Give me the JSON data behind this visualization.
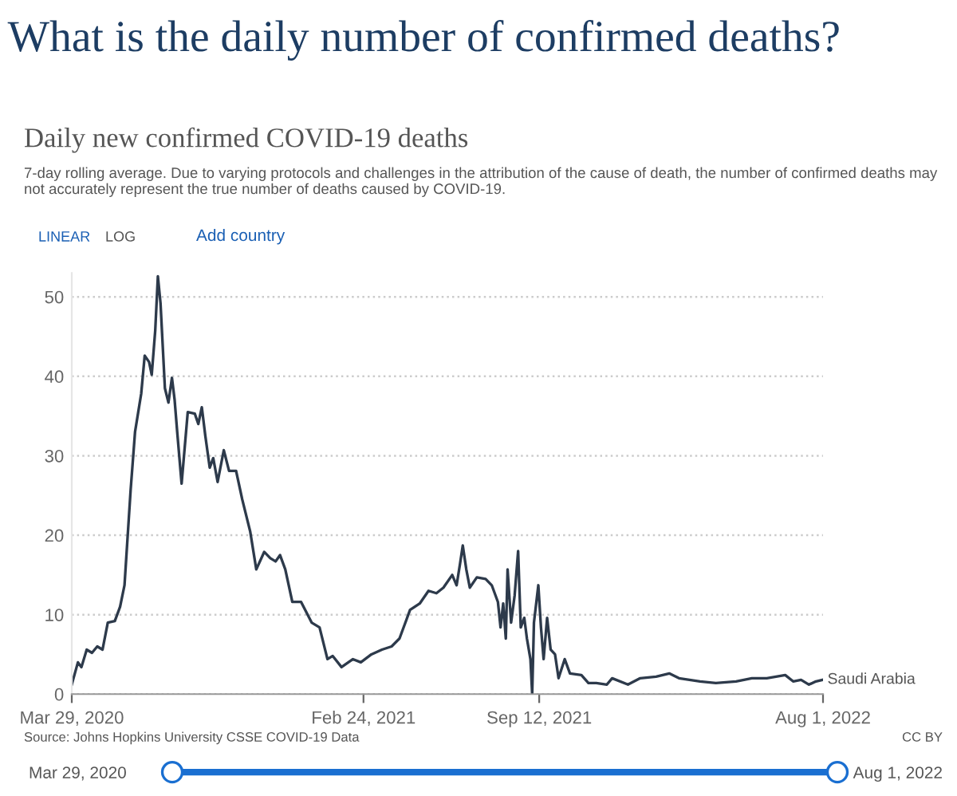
{
  "chart_data": {
    "type": "line",
    "title": "What is the daily number of confirmed deaths?",
    "subtitle": "Daily new confirmed COVID-19 deaths",
    "annotations": [
      "7-day rolling average. Due to varying protocols and challenges in the attribution of the cause of death, the number of confirmed deaths may not accurately represent the true number of deaths caused by COVID-19.",
      "LINEAR",
      "LOG",
      "Add country",
      "Source: Johns Hopkins University CSSE COVID-19 Data",
      "CC BY",
      "Mar 29, 2020",
      "Aug 1, 2022"
    ],
    "x": [
      "2020-03-29",
      "2020-04-05",
      "2020-04-09",
      "2020-04-15",
      "2020-04-21",
      "2020-04-27",
      "2020-05-03",
      "2020-05-09",
      "2020-05-17",
      "2020-05-23",
      "2020-05-28",
      "2020-06-04",
      "2020-06-09",
      "2020-06-16",
      "2020-06-20",
      "2020-06-25",
      "2020-06-28",
      "2020-07-02",
      "2020-07-05",
      "2020-07-08",
      "2020-07-13",
      "2020-07-17",
      "2020-07-21",
      "2020-07-24",
      "2020-07-27",
      "2020-08-01",
      "2020-08-08",
      "2020-08-16",
      "2020-08-20",
      "2020-08-24",
      "2020-08-28",
      "2020-09-02",
      "2020-09-06",
      "2020-09-11",
      "2020-09-18",
      "2020-09-24",
      "2020-10-02",
      "2020-10-09",
      "2020-10-18",
      "2020-10-25",
      "2020-11-03",
      "2020-11-10",
      "2020-11-16",
      "2020-11-21",
      "2020-11-27",
      "2020-12-05",
      "2020-12-15",
      "2020-12-27",
      "2021-01-05",
      "2021-01-14",
      "2021-01-20",
      "2021-01-30",
      "2021-02-12",
      "2021-02-21",
      "2021-03-05",
      "2021-03-17",
      "2021-03-28",
      "2021-04-06",
      "2021-04-18",
      "2021-04-29",
      "2021-05-09",
      "2021-05-18",
      "2021-05-26",
      "2021-06-05",
      "2021-06-10",
      "2021-06-14",
      "2021-06-17",
      "2021-06-21",
      "2021-06-25",
      "2021-07-03",
      "2021-07-13",
      "2021-07-20",
      "2021-07-27",
      "2021-07-30",
      "2021-08-02",
      "2021-08-05",
      "2021-08-07",
      "2021-08-11",
      "2021-08-15",
      "2021-08-19",
      "2021-08-22",
      "2021-08-26",
      "2021-08-29",
      "2021-09-02",
      "2021-09-04",
      "2021-09-06",
      "2021-09-11",
      "2021-09-14",
      "2021-09-17",
      "2021-09-21",
      "2021-09-25",
      "2021-09-30",
      "2021-10-04",
      "2021-10-11",
      "2021-10-17",
      "2021-10-30",
      "2021-11-07",
      "2021-11-16",
      "2021-11-28",
      "2021-12-04",
      "2021-12-22",
      "2022-01-05",
      "2022-01-23",
      "2022-02-07",
      "2022-02-18",
      "2022-03-14",
      "2022-04-01",
      "2022-04-24",
      "2022-05-12",
      "2022-05-29",
      "2022-06-19",
      "2022-06-28",
      "2022-07-07",
      "2022-07-16",
      "2022-07-24",
      "2022-08-01"
    ],
    "series": [
      {
        "name": "Saudi Arabia",
        "color": "#2d3a4b",
        "values": [
          1.2,
          4,
          3.4,
          5.6,
          5.2,
          6,
          5.6,
          9,
          9.2,
          11,
          13.7,
          25.7,
          33,
          37.8,
          42.6,
          41.8,
          40.2,
          45.8,
          52.6,
          49.2,
          38.5,
          36.7,
          39.8,
          37.1,
          33,
          26.5,
          35.5,
          35.3,
          34,
          36.1,
          32.5,
          28.5,
          29.7,
          26.7,
          30.7,
          28.1,
          28.1,
          24.5,
          20.5,
          15.7,
          17.9,
          17.1,
          16.7,
          17.5,
          15.7,
          11.6,
          11.6,
          9,
          8.4,
          4.4,
          4.8,
          3.4,
          4.4,
          4,
          5,
          5.6,
          6,
          7,
          10.6,
          11.4,
          13,
          12.7,
          13.4,
          15,
          13.7,
          16.5,
          18.7,
          15.7,
          13.4,
          14.7,
          14.5,
          13.7,
          11.6,
          8.4,
          11.4,
          7,
          15.7,
          9,
          12.4,
          18,
          8.4,
          9.6,
          7,
          4.4,
          0,
          9,
          13.7,
          8.4,
          4.4,
          9.6,
          5.6,
          5,
          2,
          4.4,
          2.6,
          2.4,
          1.4,
          1.4,
          1.2,
          2,
          1.2,
          2,
          2.2,
          2.6,
          2,
          1.6,
          1.4,
          1.6,
          2,
          2,
          2.4,
          1.6,
          1.8,
          1.2,
          1.6,
          1.8
        ]
      }
    ],
    "xlim": [
      "2020-03-29",
      "2022-08-01"
    ],
    "xticks": [
      {
        "value": "2020-03-29",
        "label": "Mar 29, 2020"
      },
      {
        "value": "2021-02-24",
        "label": "Feb 24, 2021"
      },
      {
        "value": "2021-09-12",
        "label": "Sep 12, 2021"
      },
      {
        "value": "2022-08-01",
        "label": "Aug 1, 2022"
      }
    ],
    "ylim": [
      0,
      53
    ],
    "yticks": [
      0,
      10,
      20,
      30,
      40,
      50
    ],
    "grid": "y",
    "legend": false,
    "line_style": "solid",
    "marker": "none"
  }
}
